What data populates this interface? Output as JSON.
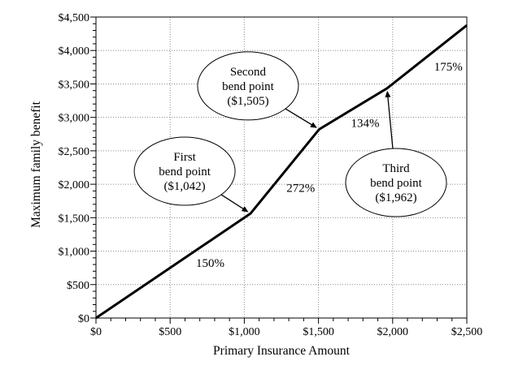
{
  "colors": {
    "background": "#ffffff",
    "line": "#000000",
    "grid": "#8c8c8c",
    "frame": "#000000",
    "annotation_fill": "#ffffff"
  },
  "chart_data": {
    "type": "line",
    "title": "",
    "xlabel": "Primary Insurance Amount",
    "ylabel": "Maximum family benefit",
    "xlim": [
      0,
      2500
    ],
    "ylim": [
      0,
      4500
    ],
    "x_major_ticks": [
      0,
      500,
      1000,
      1500,
      2000,
      2500
    ],
    "x_tick_labels": [
      "$0",
      "$500",
      "$1,000",
      "$1,500",
      "$2,000",
      "$2,500"
    ],
    "y_major_ticks": [
      0,
      500,
      1000,
      1500,
      2000,
      2500,
      3000,
      3500,
      4000,
      4500
    ],
    "y_tick_labels": [
      "$0",
      "$500",
      "$1,000",
      "$1,500",
      "$2,000",
      "$2,500",
      "$3,000",
      "$3,500",
      "$4,000",
      "$4,500"
    ],
    "minor_tick_interval": 100,
    "grid_style": "dotted-major-gridlines",
    "legend": "none",
    "series": [
      {
        "name": "Maximum family benefit",
        "points": [
          [
            0,
            0
          ],
          [
            1042,
            1563
          ],
          [
            1505,
            2822
          ],
          [
            1962,
            3434
          ],
          [
            2500,
            4376
          ]
        ]
      }
    ],
    "bend_points": [
      {
        "name": "First bend point",
        "pia": 1042,
        "benefit": 1563
      },
      {
        "name": "Second bend point",
        "pia": 1505,
        "benefit": 2822
      },
      {
        "name": "Third bend point",
        "pia": 1962,
        "benefit": 3434
      }
    ],
    "segment_labels": [
      {
        "text": "150%",
        "x": 770,
        "y": 825
      },
      {
        "text": "272%",
        "x": 1380,
        "y": 1945
      },
      {
        "text": "134%",
        "x": 1815,
        "y": 2920
      },
      {
        "text": "175%",
        "x": 2375,
        "y": 3760
      }
    ],
    "annotations": [
      {
        "lines": [
          "First",
          "bend point",
          "($1,042)"
        ],
        "center": [
          598,
          2195
        ],
        "target": [
          1042,
          1563
        ]
      },
      {
        "lines": [
          "Second",
          "bend point",
          "($1,505)"
        ],
        "center": [
          1025,
          3470
        ],
        "target": [
          1505,
          2822
        ]
      },
      {
        "lines": [
          "Third",
          "bend point",
          "($1,962)"
        ],
        "center": [
          2023,
          2025
        ],
        "target": [
          1962,
          3434
        ]
      }
    ]
  }
}
